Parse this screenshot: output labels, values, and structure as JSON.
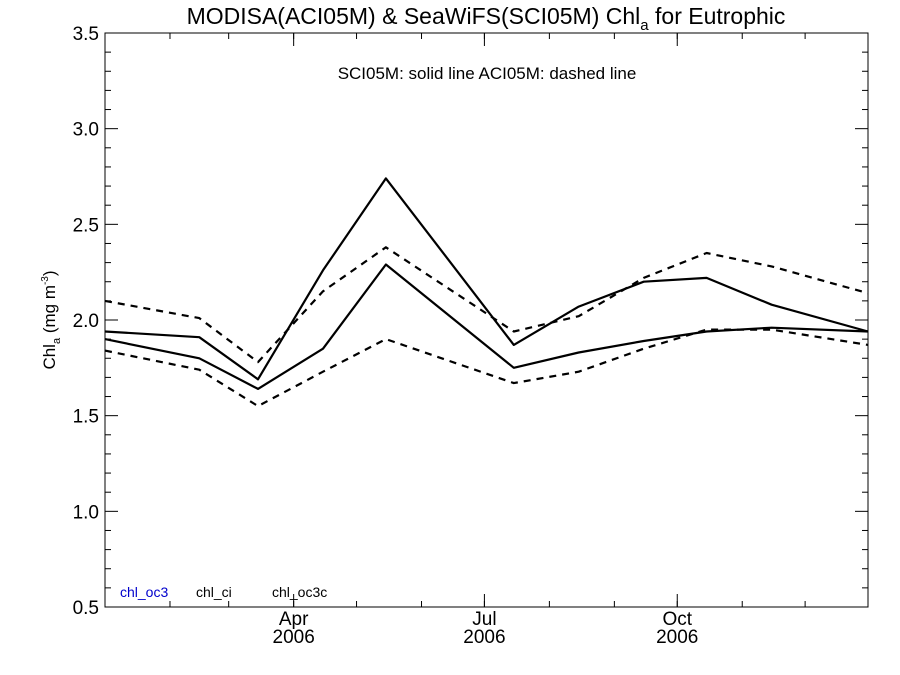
{
  "chart_data": {
    "type": "line",
    "title": {
      "prefix": "MODISA(ACI05M) & SeaWiFS(SCI05M)  Chl",
      "subscript": "a",
      "suffix": " for Eutrophic"
    },
    "ylabel": {
      "prefix": "Chl",
      "subscript": "a",
      "middle": " (mg m",
      "superscript": "-3",
      "suffix": ")"
    },
    "annotation": "SCI05M: solid line   ACI05M: dashed line",
    "ylim": [
      0.5,
      3.5
    ],
    "yticks": [
      {
        "value": 0.5,
        "label": "0.5"
      },
      {
        "value": 1.0,
        "label": "1.0"
      },
      {
        "value": 1.5,
        "label": "1.5"
      },
      {
        "value": 2.0,
        "label": "2.0"
      },
      {
        "value": 2.5,
        "label": "2.5"
      },
      {
        "value": 3.0,
        "label": "3.0"
      },
      {
        "value": 3.5,
        "label": "3.5"
      }
    ],
    "xlim": [
      "2006-01-01",
      "2006-12-31"
    ],
    "xticks": [
      {
        "date": "2006-04-01",
        "month": "Apr",
        "year": "2006"
      },
      {
        "date": "2006-07-01",
        "month": "Jul",
        "year": "2006"
      },
      {
        "date": "2006-10-01",
        "month": "Oct",
        "year": "2006"
      }
    ],
    "x": [
      "2006-01-01",
      "2006-02-15",
      "2006-03-15",
      "2006-04-15",
      "2006-05-15",
      "2006-06-15",
      "2006-07-15",
      "2006-08-15",
      "2006-09-15",
      "2006-10-15",
      "2006-11-15",
      "2006-12-31"
    ],
    "series": [
      {
        "dash": false,
        "color": "#000000",
        "values": [
          1.94,
          1.91,
          1.69,
          2.26,
          2.74,
          null,
          1.87,
          2.07,
          2.2,
          2.22,
          2.08,
          1.94
        ]
      },
      {
        "dash": false,
        "color": "#000000",
        "values": [
          1.9,
          1.8,
          1.64,
          1.85,
          2.29,
          null,
          1.75,
          1.83,
          1.89,
          1.94,
          1.96,
          1.94
        ]
      },
      {
        "dash": true,
        "color": "#000000",
        "values": [
          2.1,
          2.01,
          1.78,
          2.15,
          2.38,
          null,
          1.94,
          2.02,
          2.22,
          2.35,
          2.28,
          2.14
        ]
      },
      {
        "dash": true,
        "color": "#000000",
        "values": [
          1.84,
          1.74,
          1.55,
          1.73,
          1.9,
          null,
          1.67,
          1.73,
          1.85,
          1.95,
          1.95,
          1.87
        ]
      }
    ],
    "legend": [
      {
        "label": "chl_oc3",
        "color": "#0000cc"
      },
      {
        "label": "chl_ci",
        "color": "#000000"
      },
      {
        "label": "chl_oc3c",
        "color": "#000000"
      }
    ]
  }
}
